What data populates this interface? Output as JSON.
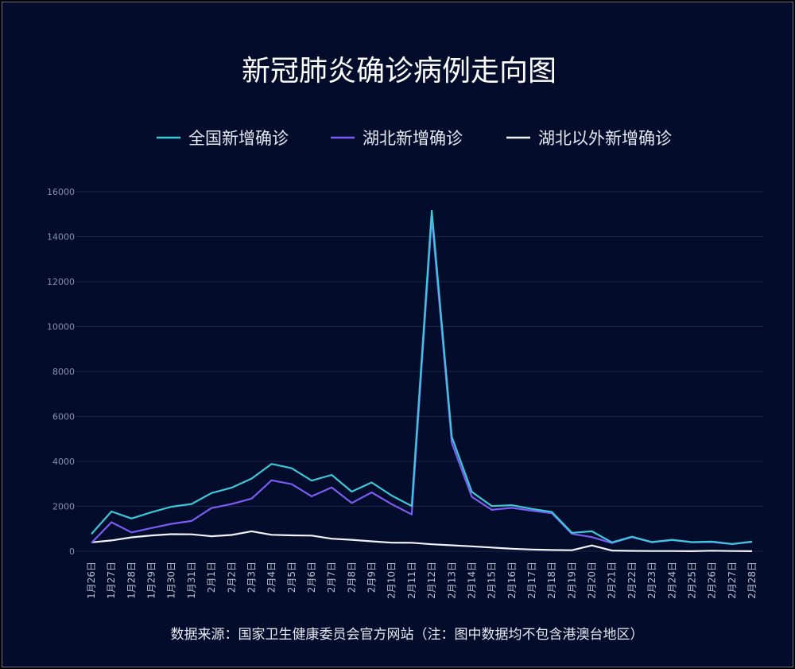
{
  "chart_data": {
    "type": "line",
    "title": "新冠肺炎确诊病例走向图",
    "xlabel": "",
    "ylabel": "",
    "ylim": [
      0,
      16000
    ],
    "yticks": [
      0,
      2000,
      4000,
      6000,
      8000,
      10000,
      12000,
      14000,
      16000
    ],
    "grid": true,
    "legend_position": "top-center",
    "categories": [
      "1月26日",
      "1月27日",
      "1月28日",
      "1月29日",
      "1月30日",
      "1月31日",
      "2月1日",
      "2月2日",
      "2月3日",
      "2月4日",
      "2月5日",
      "2月6日",
      "2月7日",
      "2月8日",
      "2月9日",
      "2月10日",
      "2月11日",
      "2月12日",
      "2月13日",
      "2月14日",
      "2月15日",
      "2月16日",
      "2月17日",
      "2月18日",
      "2月19日",
      "2月20日",
      "2月21日",
      "2月22日",
      "2月23日",
      "2月24日",
      "2月25日",
      "2月26日",
      "2月27日",
      "2月28日"
    ],
    "series": [
      {
        "name": "全国新增确诊",
        "color": "#3cc8d8",
        "values": [
          769,
          1771,
          1459,
          1737,
          1982,
          2102,
          2590,
          2829,
          3235,
          3887,
          3694,
          3143,
          3399,
          2656,
          3062,
          2478,
          2015,
          15152,
          5090,
          2641,
          2009,
          2048,
          1886,
          1749,
          820,
          889,
          397,
          648,
          409,
          508,
          406,
          433,
          327,
          427
        ]
      },
      {
        "name": "湖北新增确诊",
        "color": "#7a5cf2",
        "values": [
          371,
          1291,
          840,
          1032,
          1220,
          1347,
          1921,
          2103,
          2345,
          3156,
          2987,
          2447,
          2841,
          2147,
          2618,
          2097,
          1638,
          14840,
          4823,
          2420,
          1843,
          1933,
          1807,
          1693,
          775,
          631,
          366,
          630,
          398,
          499,
          401,
          409,
          318,
          423
        ]
      },
      {
        "name": "湖北以外新增确诊",
        "color": "#f2f2f7",
        "values": [
          398,
          480,
          619,
          705,
          762,
          755,
          669,
          726,
          890,
          731,
          707,
          696,
          558,
          509,
          444,
          381,
          377,
          312,
          267,
          221,
          166,
          115,
          79,
          56,
          45,
          258,
          31,
          18,
          11,
          9,
          5,
          24,
          9,
          4
        ]
      }
    ]
  },
  "source_note": "数据来源：国家卫生健康委员会官方网站（注：图中数据均不包含港澳台地区）",
  "colors": {
    "background": "#040c2c",
    "grid": "#1c2448"
  }
}
